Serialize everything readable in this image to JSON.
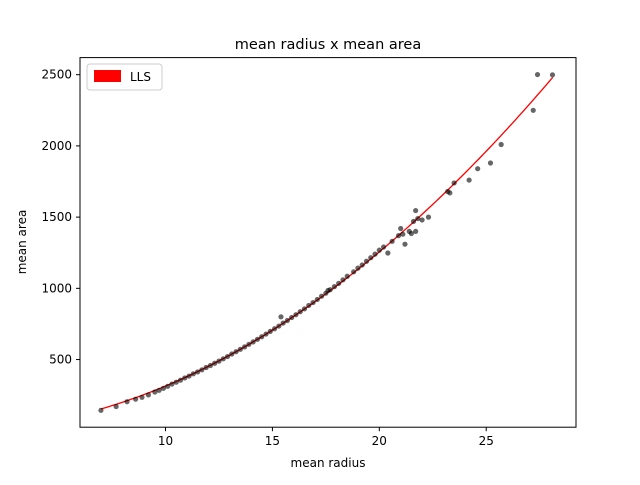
{
  "chart_data": {
    "type": "scatter",
    "title": "mean radius x mean area",
    "xlabel": "mean radius",
    "ylabel": "mean area",
    "xlim": [
      6.0,
      29.2
    ],
    "ylim": [
      25,
      2620
    ],
    "xticks": [
      10,
      15,
      20,
      25
    ],
    "yticks": [
      500,
      1000,
      1500,
      2000,
      2500
    ],
    "tick_labels_x": [
      "10",
      "15",
      "20",
      "25"
    ],
    "tick_labels_y": [
      "500",
      "1000",
      "1500",
      "2000",
      "2500"
    ],
    "legend": {
      "position": "top-left",
      "entries": [
        {
          "label": "LLS",
          "color": "#ff0000"
        }
      ]
    },
    "colors": {
      "points": "#000000",
      "point_alpha": 0.6,
      "fit_line": "#ff0000"
    },
    "series": [
      {
        "type": "scatter",
        "points": [
          [
            6.98,
            143.5
          ],
          [
            7.69,
            170.4
          ],
          [
            8.2,
            203.9
          ],
          [
            8.6,
            221.8
          ],
          [
            8.9,
            235
          ],
          [
            9.2,
            252
          ],
          [
            9.5,
            272
          ],
          [
            9.7,
            284
          ],
          [
            9.9,
            298
          ],
          [
            10.1,
            312
          ],
          [
            10.3,
            328
          ],
          [
            10.5,
            341
          ],
          [
            10.7,
            355
          ],
          [
            10.9,
            371
          ],
          [
            11.1,
            384
          ],
          [
            11.3,
            400
          ],
          [
            11.5,
            413
          ],
          [
            11.7,
            428
          ],
          [
            11.9,
            444
          ],
          [
            12.1,
            458
          ],
          [
            12.3,
            474
          ],
          [
            12.5,
            489
          ],
          [
            12.7,
            505
          ],
          [
            12.9,
            521
          ],
          [
            13.1,
            539
          ],
          [
            13.3,
            555
          ],
          [
            13.5,
            572
          ],
          [
            13.7,
            589
          ],
          [
            13.9,
            607
          ],
          [
            14.1,
            624
          ],
          [
            14.3,
            642
          ],
          [
            14.5,
            660
          ],
          [
            14.7,
            679
          ],
          [
            14.9,
            698
          ],
          [
            15.1,
            716
          ],
          [
            15.3,
            735
          ],
          [
            15.4,
            800
          ],
          [
            15.5,
            756
          ],
          [
            15.7,
            774
          ],
          [
            15.9,
            795
          ],
          [
            16.1,
            815
          ],
          [
            16.3,
            836
          ],
          [
            16.5,
            856
          ],
          [
            16.7,
            880
          ],
          [
            16.9,
            900
          ],
          [
            17.1,
            922
          ],
          [
            17.3,
            945
          ],
          [
            17.5,
            966
          ],
          [
            17.6,
            985
          ],
          [
            17.7,
            990
          ],
          [
            17.9,
            1012
          ],
          [
            18.1,
            1035
          ],
          [
            18.3,
            1060
          ],
          [
            18.5,
            1085
          ],
          [
            18.8,
            1116
          ],
          [
            19.0,
            1142
          ],
          [
            19.2,
            1164
          ],
          [
            19.4,
            1190
          ],
          [
            19.6,
            1215
          ],
          [
            19.8,
            1240
          ],
          [
            20.0,
            1268
          ],
          [
            20.2,
            1290
          ],
          [
            20.4,
            1248
          ],
          [
            20.6,
            1330
          ],
          [
            20.9,
            1370
          ],
          [
            21.0,
            1420
          ],
          [
            21.1,
            1380
          ],
          [
            21.2,
            1310
          ],
          [
            21.4,
            1400
          ],
          [
            21.5,
            1385
          ],
          [
            21.6,
            1470
          ],
          [
            21.7,
            1400
          ],
          [
            21.7,
            1546
          ],
          [
            21.8,
            1490
          ],
          [
            22.0,
            1480
          ],
          [
            22.3,
            1500
          ],
          [
            23.2,
            1680
          ],
          [
            23.3,
            1670
          ],
          [
            23.5,
            1740
          ],
          [
            24.2,
            1760
          ],
          [
            24.6,
            1840
          ],
          [
            25.2,
            1880
          ],
          [
            25.7,
            2010
          ],
          [
            27.2,
            2250
          ],
          [
            27.4,
            2501
          ],
          [
            28.1,
            2499
          ]
        ]
      },
      {
        "type": "line",
        "name": "LLS",
        "equation": "y = 3.14 * x^2",
        "x_range": [
          6.98,
          28.11
        ]
      }
    ]
  }
}
